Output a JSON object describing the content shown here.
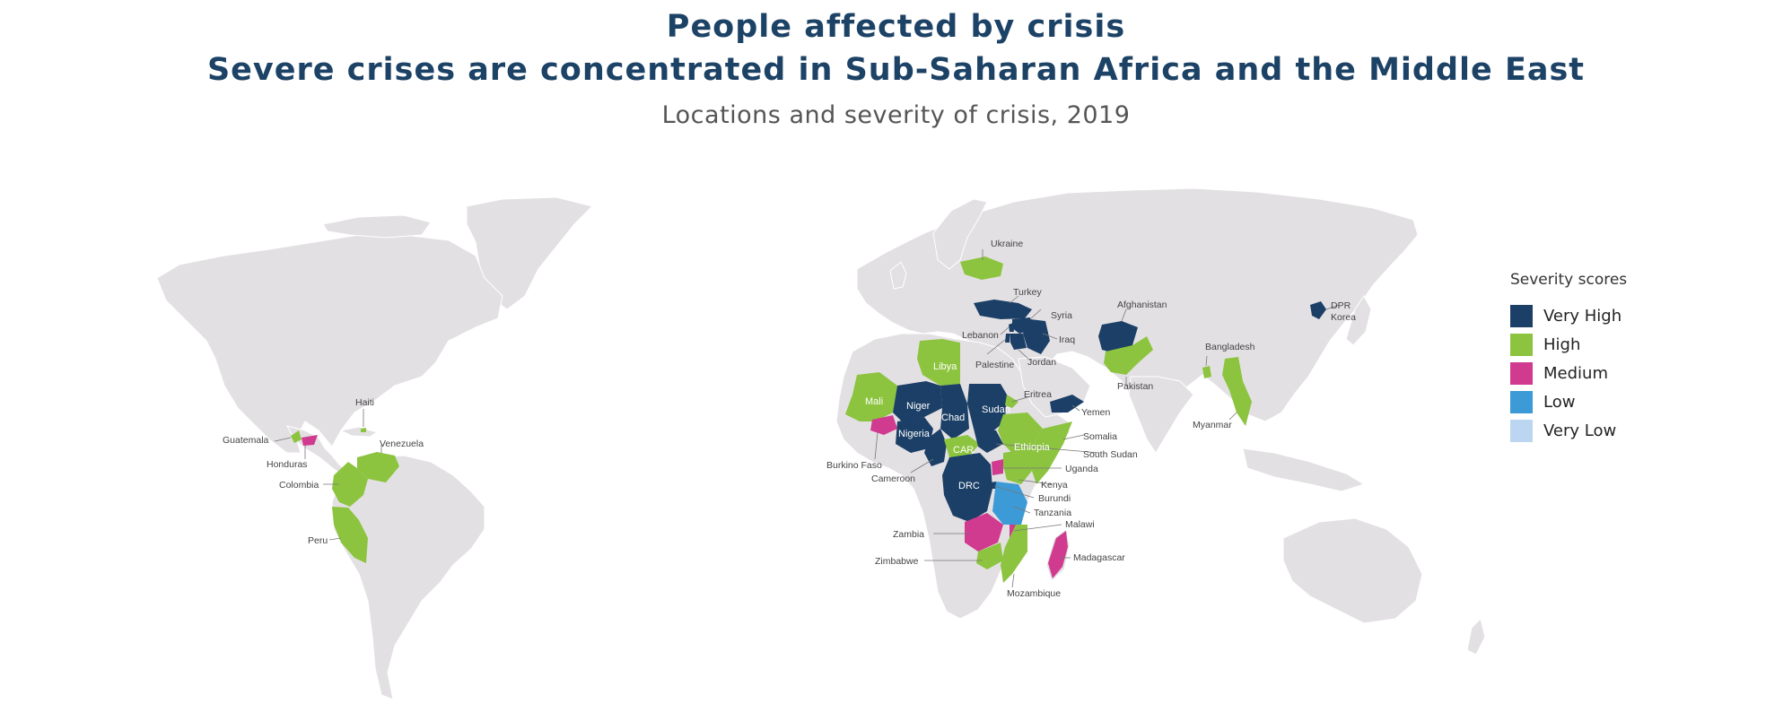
{
  "header": {
    "title_line1": "People affected by crisis",
    "title_line2": "Severe crises are concentrated in Sub-Saharan Africa and the Middle East",
    "subtitle": "Locations and severity of crisis, 2019"
  },
  "legend": {
    "title": "Severity scores",
    "items": [
      {
        "label": "Very High",
        "color": "#1b3f66"
      },
      {
        "label": "High",
        "color": "#8cc43f"
      },
      {
        "label": "Medium",
        "color": "#d03a8f"
      },
      {
        "label": "Low",
        "color": "#3c9ad6"
      },
      {
        "label": "Very Low",
        "color": "#bcd6f2"
      }
    ]
  },
  "map": {
    "land_color": "#e3e0e3",
    "countries": [
      {
        "name": "Haiti",
        "severity": "High"
      },
      {
        "name": "Guatemala",
        "severity": "High"
      },
      {
        "name": "Honduras",
        "severity": "Medium"
      },
      {
        "name": "Venezuela",
        "severity": "High"
      },
      {
        "name": "Colombia",
        "severity": "High"
      },
      {
        "name": "Peru",
        "severity": "High"
      },
      {
        "name": "Ukraine",
        "severity": "High"
      },
      {
        "name": "Turkey",
        "severity": "Very High"
      },
      {
        "name": "Syria",
        "severity": "Very High"
      },
      {
        "name": "Lebanon",
        "severity": "Very High"
      },
      {
        "name": "Iraq",
        "severity": "Very High"
      },
      {
        "name": "Palestine",
        "severity": "Very High"
      },
      {
        "name": "Jordan",
        "severity": "Very High"
      },
      {
        "name": "Afghanistan",
        "severity": "Very High"
      },
      {
        "name": "Pakistan",
        "severity": "High"
      },
      {
        "name": "Bangladesh",
        "severity": "High"
      },
      {
        "name": "Myanmar",
        "severity": "High"
      },
      {
        "name": "DPR Korea",
        "severity": "Very High"
      },
      {
        "name": "Libya",
        "severity": "High"
      },
      {
        "name": "Mali",
        "severity": "High"
      },
      {
        "name": "Niger",
        "severity": "Very High"
      },
      {
        "name": "Chad",
        "severity": "Very High"
      },
      {
        "name": "Sudan",
        "severity": "Very High"
      },
      {
        "name": "Eritrea",
        "severity": "High"
      },
      {
        "name": "Yemen",
        "severity": "Very High"
      },
      {
        "name": "Nigeria",
        "severity": "Very High"
      },
      {
        "name": "Burkino Faso",
        "severity": "Medium"
      },
      {
        "name": "Cameroon",
        "severity": "Very High"
      },
      {
        "name": "CAR",
        "severity": "High"
      },
      {
        "name": "Ethiopia",
        "severity": "High"
      },
      {
        "name": "Somalia",
        "severity": "High"
      },
      {
        "name": "South Sudan",
        "severity": "Very High"
      },
      {
        "name": "Uganda",
        "severity": "Medium"
      },
      {
        "name": "Kenya",
        "severity": "High"
      },
      {
        "name": "DRC",
        "severity": "Very High"
      },
      {
        "name": "Burundi",
        "severity": "Very High"
      },
      {
        "name": "Tanzania",
        "severity": "Low"
      },
      {
        "name": "Malawi",
        "severity": "Medium"
      },
      {
        "name": "Zambia",
        "severity": "Medium"
      },
      {
        "name": "Zimbabwe",
        "severity": "High"
      },
      {
        "name": "Mozambique",
        "severity": "High"
      },
      {
        "name": "Madagascar",
        "severity": "Medium"
      }
    ]
  }
}
